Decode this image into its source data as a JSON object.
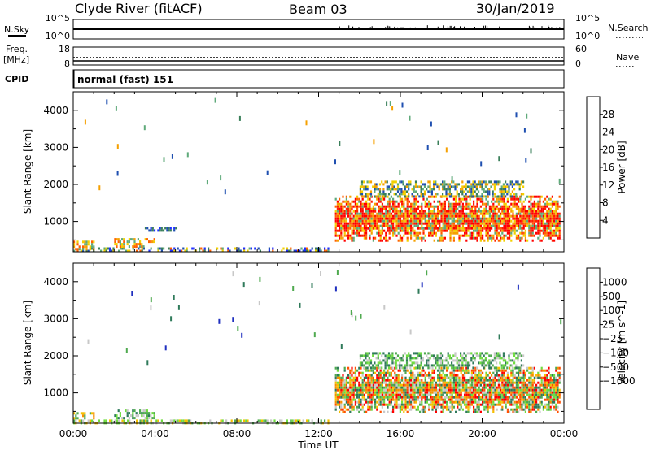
{
  "header": {
    "station": "Clyde River (fitACF)",
    "beam": "Beam 03",
    "date": "30/Jan/2019"
  },
  "status_panels": {
    "nsky": {
      "label": "N.Sky",
      "left_ticks": [
        "10^5",
        "10^0"
      ],
      "right_ticks": [
        "10^5",
        "10^0"
      ],
      "right_label": "N.Search",
      "right_label_style": "dotted"
    },
    "freq": {
      "label_line1": "Freq.",
      "label_line2": "[MHz]",
      "left_ticks": [
        "18",
        "8"
      ],
      "right_ticks": [
        "60",
        "0"
      ],
      "right_label": "Nave",
      "right_label_style": "dotted"
    },
    "cpid": {
      "label": "CPID",
      "value": "normal (fast) 151"
    }
  },
  "chart_data": [
    {
      "type": "heatmap",
      "title": "",
      "xlabel": "Time UT",
      "ylabel": "Slant Range [km]",
      "x_ticks": [
        "00:00",
        "04:00",
        "08:00",
        "12:00",
        "16:00",
        "20:00",
        "00:00"
      ],
      "x_range_hours": [
        0,
        24
      ],
      "y_ticks": [
        1000,
        2000,
        3000,
        4000
      ],
      "y_range": [
        180,
        4500
      ],
      "colorbar": {
        "label": "Power [dB]",
        "tick_labels": [
          "4",
          "8",
          "12",
          "16",
          "20",
          "24",
          "28"
        ],
        "range": [
          0,
          32
        ],
        "stops": [
          "#1f2fff",
          "#1f4fb0",
          "#3a7f5a",
          "#5faa7a",
          "#f2d000",
          "#f5a000",
          "#ff6000",
          "#ff0000"
        ]
      },
      "data_regions": [
        {
          "t_start": 0.0,
          "t_end": 12.5,
          "r_min": 180,
          "r_max": 300,
          "level": "low-mixed"
        },
        {
          "t_start": 0.0,
          "t_end": 1.0,
          "r_min": 280,
          "r_max": 480,
          "level": "orange"
        },
        {
          "t_start": 2.0,
          "t_end": 4.0,
          "r_min": 300,
          "r_max": 550,
          "level": "orange"
        },
        {
          "t_start": 3.5,
          "t_end": 5.0,
          "r_min": 750,
          "r_max": 850,
          "level": "blue"
        },
        {
          "t_start": 12.8,
          "t_end": 23.8,
          "r_min": 500,
          "r_max": 1700,
          "level": "red-core"
        },
        {
          "t_start": 14.0,
          "t_end": 22.0,
          "r_min": 1700,
          "r_max": 2100,
          "level": "green-yellow"
        }
      ]
    },
    {
      "type": "heatmap",
      "title": "",
      "xlabel": "Time UT",
      "ylabel": "Slant Range [km]",
      "x_ticks": [
        "00:00",
        "04:00",
        "08:00",
        "12:00",
        "16:00",
        "20:00",
        "00:00"
      ],
      "x_range_hours": [
        0,
        24
      ],
      "y_ticks": [
        1000,
        2000,
        3000,
        4000
      ],
      "y_range": [
        180,
        4500
      ],
      "colorbar": {
        "label": "Velocity [m s^-1]",
        "tick_labels": [
          "1000",
          "500",
          "100",
          "25",
          "−25",
          "−100",
          "−500",
          "−1000"
        ],
        "stops": [
          "#1f2fbf",
          "#2f5fc0",
          "#2f7a5a",
          "#4faa4f",
          "#6fdc3f",
          "#c8c8c8",
          "#f5c000",
          "#f59000",
          "#ff5000",
          "#ff0000"
        ]
      },
      "data_regions": [
        {
          "t_start": 0.0,
          "t_end": 12.5,
          "r_min": 180,
          "r_max": 280,
          "level": "green-low"
        },
        {
          "t_start": 0.0,
          "t_end": 1.0,
          "r_min": 300,
          "r_max": 480,
          "level": "orange"
        },
        {
          "t_start": 2.0,
          "t_end": 4.0,
          "r_min": 300,
          "r_max": 550,
          "level": "green"
        },
        {
          "t_start": 12.8,
          "t_end": 23.8,
          "r_min": 500,
          "r_max": 1700,
          "level": "orange-mixed"
        },
        {
          "t_start": 14.0,
          "t_end": 22.0,
          "r_min": 1700,
          "r_max": 2100,
          "level": "grey-green"
        }
      ]
    }
  ]
}
